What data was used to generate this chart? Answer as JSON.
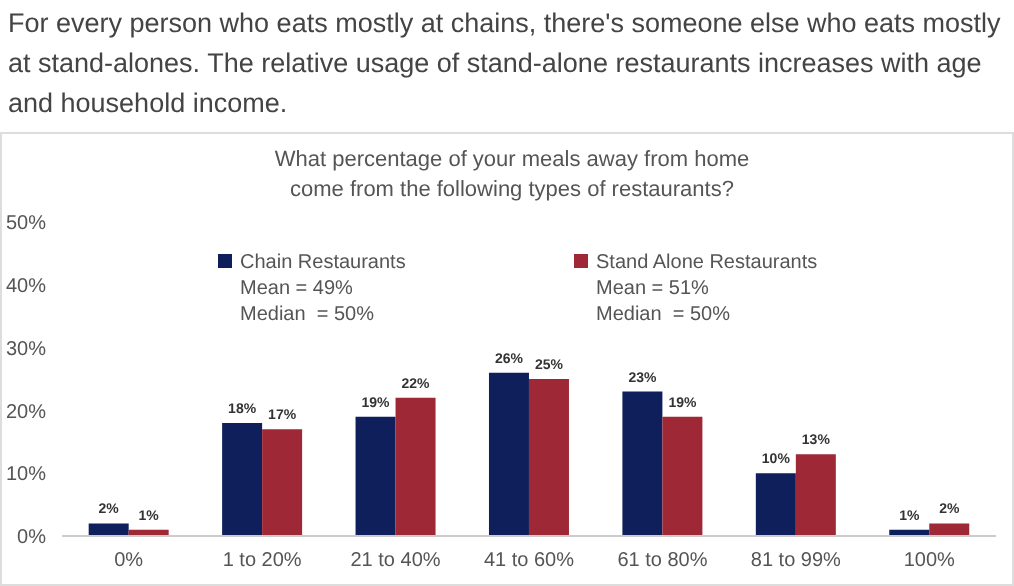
{
  "chart_data": {
    "type": "bar",
    "title": "For every person who eats mostly at chains, there's someone else who eats mostly at stand-alones. The relative usage of stand-alone restaurants increases with age and household income.",
    "subtitle": "What percentage of your meals away from home come from the following types of restaurants?",
    "categories": [
      "0%",
      "1 to 20%",
      "21 to 40%",
      "41 to 60%",
      "61 to 80%",
      "81 to 99%",
      "100%"
    ],
    "series": [
      {
        "name": "Chain Restaurants",
        "color": "#0f1f5c",
        "values": [
          2,
          18,
          19,
          26,
          23,
          10,
          1
        ],
        "value_labels": [
          "2%",
          "18%",
          "19%",
          "26%",
          "23%",
          "10%",
          "1%"
        ]
      },
      {
        "name": "Stand Alone Restaurants",
        "color": "#9e2835",
        "values": [
          1,
          17,
          22,
          25,
          19,
          13,
          2
        ],
        "value_labels": [
          "1%",
          "17%",
          "22%",
          "25%",
          "19%",
          "13%",
          "2%"
        ]
      }
    ],
    "annotations": [
      "Mean = 49%",
      "Median  = 50%",
      "Mean = 51%",
      "Median  = 50%"
    ],
    "ylim": [
      0,
      50
    ],
    "yticks": [
      {
        "value": 0,
        "label": "0%"
      },
      {
        "value": 10,
        "label": "10%"
      },
      {
        "value": 20,
        "label": "20%"
      },
      {
        "value": 30,
        "label": "30%"
      },
      {
        "value": 40,
        "label": "40%"
      },
      {
        "value": 50,
        "label": "50%"
      }
    ],
    "legend": "top",
    "grid": false
  }
}
